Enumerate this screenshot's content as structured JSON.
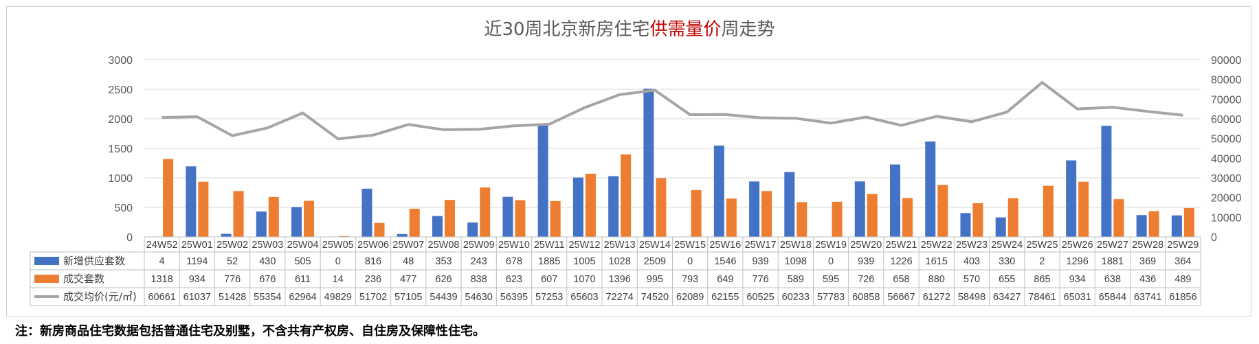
{
  "chart_data": {
    "type": "bar",
    "title": {
      "prefix": "近30周北京新房住宅",
      "highlight": "供需量价",
      "suffix": "周走势"
    },
    "categories": [
      "24W52",
      "25W01",
      "25W02",
      "25W03",
      "25W04",
      "25W05",
      "25W06",
      "25W07",
      "25W08",
      "25W09",
      "25W10",
      "25W11",
      "25W12",
      "25W13",
      "25W14",
      "25W15",
      "25W16",
      "25W17",
      "25W18",
      "25W19",
      "25W20",
      "25W21",
      "25W22",
      "25W23",
      "25W24",
      "25W25",
      "25W26",
      "25W27",
      "25W28",
      "25W29"
    ],
    "series": [
      {
        "name": "新增供应套数",
        "kind": "bar",
        "axis": "left",
        "color": "#4472c4",
        "values": [
          4,
          1194,
          52,
          430,
          505,
          0,
          816,
          48,
          353,
          243,
          678,
          1885,
          1005,
          1028,
          2509,
          0,
          1546,
          939,
          1098,
          0,
          939,
          1226,
          1615,
          403,
          330,
          2,
          1296,
          1881,
          369,
          364
        ]
      },
      {
        "name": "成交套数",
        "kind": "bar",
        "axis": "left",
        "color": "#ed7d31",
        "values": [
          1318,
          934,
          776,
          676,
          611,
          14,
          236,
          477,
          626,
          838,
          623,
          607,
          1070,
          1396,
          995,
          793,
          649,
          776,
          589,
          595,
          726,
          658,
          880,
          570,
          655,
          865,
          934,
          638,
          436,
          489
        ]
      },
      {
        "name": "成交均价(元/㎡)",
        "kind": "line",
        "axis": "right",
        "color": "#a5a5a5",
        "values": [
          60661,
          61037,
          51428,
          55354,
          62964,
          49829,
          51702,
          57105,
          54439,
          54630,
          56395,
          57253,
          65603,
          72274,
          74520,
          62089,
          62155,
          60525,
          60233,
          57783,
          60858,
          56667,
          61272,
          58498,
          63427,
          78461,
          65031,
          65844,
          63741,
          61856
        ]
      }
    ],
    "y_left": {
      "min": 0,
      "max": 3000,
      "ticks": [
        0,
        500,
        1000,
        1500,
        2000,
        2500,
        3000
      ]
    },
    "y_right": {
      "min": 0,
      "max": 90000,
      "ticks": [
        0,
        10000,
        20000,
        30000,
        40000,
        50000,
        60000,
        70000,
        80000,
        90000
      ]
    },
    "grid": true,
    "data_table": true,
    "title_highlight_color": "#c00000"
  },
  "footnote": "注：新房商品住宅数据包括普通住宅及别墅，不含共有产权房、自住房及保障性住宅。"
}
